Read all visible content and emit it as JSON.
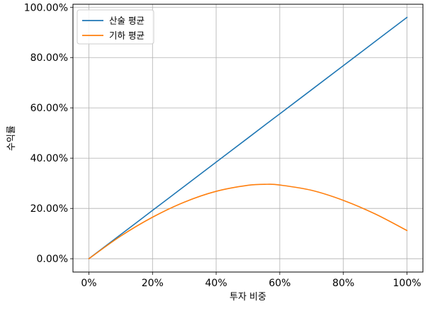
{
  "chart_data": {
    "type": "line",
    "title": "",
    "xlabel": "투자 비중",
    "ylabel": "수익률",
    "xlim": [
      -5,
      105
    ],
    "ylim": [
      -5.3,
      101.2
    ],
    "grid": true,
    "legend_position": "top-left",
    "x_ticks": [
      0,
      20,
      40,
      60,
      80,
      100
    ],
    "x_tick_labels": [
      "0%",
      "20%",
      "40%",
      "60%",
      "80%",
      "100%"
    ],
    "y_ticks": [
      0,
      20,
      40,
      60,
      80,
      100
    ],
    "y_tick_labels": [
      "0.00%",
      "20.00%",
      "40.00%",
      "60.00%",
      "80.00%",
      "100.00%"
    ],
    "x": [
      0,
      10,
      20,
      30,
      40,
      50,
      56,
      60,
      70,
      80,
      90,
      100
    ],
    "series": [
      {
        "name": "산술 평균",
        "color": "#1f77b4",
        "values": [
          0,
          9.6,
          19.2,
          28.8,
          38.4,
          48.0,
          53.8,
          57.6,
          67.2,
          76.8,
          86.4,
          96.0
        ]
      },
      {
        "name": "기하 평균",
        "color": "#ff7f0e",
        "values": [
          0,
          9.0,
          16.5,
          22.5,
          26.8,
          29.2,
          29.6,
          29.3,
          27.2,
          23.2,
          17.8,
          11.2
        ]
      }
    ]
  }
}
